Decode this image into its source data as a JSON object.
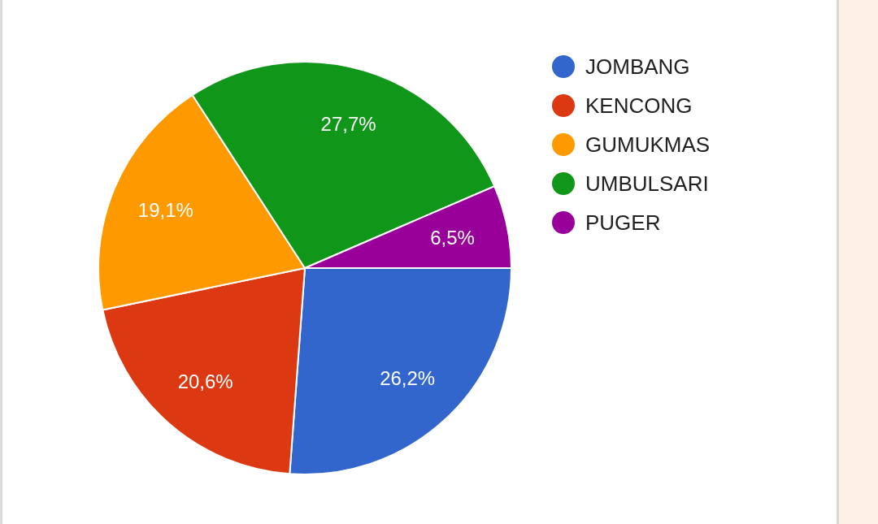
{
  "chart_data": {
    "type": "pie",
    "categories": [
      "JOMBANG",
      "KENCONG",
      "GUMUKMAS",
      "UMBULSARI",
      "PUGER"
    ],
    "values": [
      26.2,
      20.6,
      19.1,
      27.7,
      6.5
    ],
    "colors": [
      "#3366cc",
      "#dc3912",
      "#ff9900",
      "#109618",
      "#990099"
    ],
    "value_labels": [
      "26,2%",
      "20,6%",
      "19,1%",
      "27,7%",
      "6,5%"
    ],
    "legend": "top right"
  }
}
